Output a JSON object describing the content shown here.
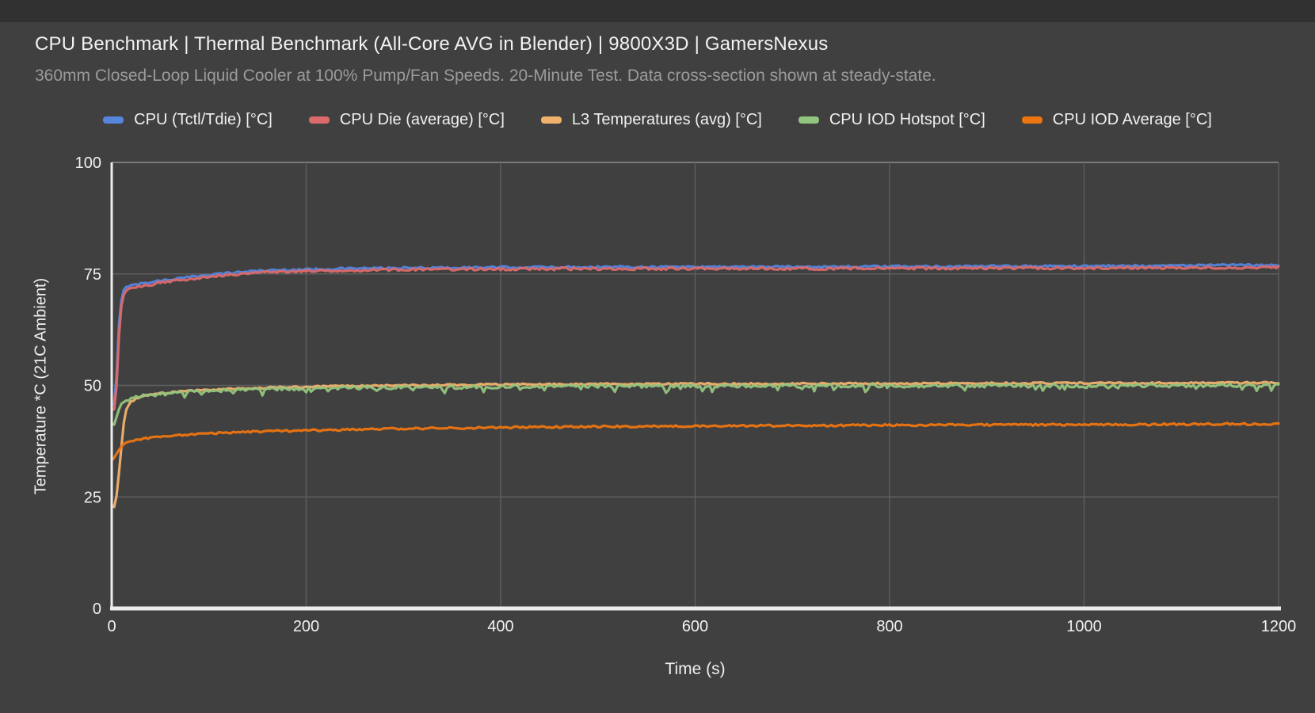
{
  "page": {
    "background": "#404040",
    "top_strip_color": "#313131"
  },
  "chart_data": {
    "type": "line",
    "title": "CPU Benchmark | Thermal Benchmark (All-Core AVG in Blender) | 9800X3D | GamersNexus",
    "subtitle": "360mm Closed-Loop Liquid Cooler at 100% Pump/Fan Speeds. 20-Minute Test. Data cross-section shown at steady-state.",
    "xlabel": "Time (s)",
    "ylabel": "Temperature *C (21C Ambient)",
    "xlim": [
      0,
      1200
    ],
    "ylim": [
      0,
      100
    ],
    "xticks": [
      0,
      200,
      400,
      600,
      800,
      1000,
      1200
    ],
    "yticks": [
      0,
      25,
      50,
      75,
      100
    ],
    "grid": true,
    "legend_position": "top",
    "colors": {
      "grid": "#5e5e5e",
      "grid_top": "#8d8d8d",
      "axis": "#ececec",
      "tick_text": "#f0f0f0"
    },
    "series": [
      {
        "name": "CPU (Tctl/Tdie) [°C]",
        "color": "#5585dd",
        "noise": 0.22,
        "points": [
          [
            0,
            45.5
          ],
          [
            3,
            45.8
          ],
          [
            5,
            52
          ],
          [
            8,
            66
          ],
          [
            11,
            71
          ],
          [
            15,
            72.2
          ],
          [
            22,
            72.5
          ],
          [
            35,
            73
          ],
          [
            50,
            73.5
          ],
          [
            70,
            74
          ],
          [
            95,
            74.7
          ],
          [
            120,
            75.2
          ],
          [
            150,
            75.7
          ],
          [
            180,
            75.9
          ],
          [
            220,
            76.1
          ],
          [
            260,
            76.25
          ],
          [
            300,
            76.3
          ],
          [
            360,
            76.4
          ],
          [
            420,
            76.5
          ],
          [
            500,
            76.55
          ],
          [
            600,
            76.6
          ],
          [
            700,
            76.6
          ],
          [
            800,
            76.65
          ],
          [
            900,
            76.7
          ],
          [
            1000,
            76.75
          ],
          [
            1080,
            76.85
          ],
          [
            1140,
            76.95
          ],
          [
            1200,
            77.0
          ]
        ]
      },
      {
        "name": "CPU Die (average) [°C]",
        "color": "#dc6a6a",
        "noise": 0.28,
        "points": [
          [
            0,
            44.3
          ],
          [
            3,
            44.6
          ],
          [
            5,
            50
          ],
          [
            8,
            63.5
          ],
          [
            11,
            69.8
          ],
          [
            15,
            71.3
          ],
          [
            22,
            71.8
          ],
          [
            35,
            72.4
          ],
          [
            50,
            73
          ],
          [
            70,
            73.6
          ],
          [
            95,
            74.3
          ],
          [
            120,
            74.8
          ],
          [
            150,
            75.3
          ],
          [
            180,
            75.55
          ],
          [
            220,
            75.75
          ],
          [
            260,
            75.85
          ],
          [
            300,
            75.95
          ],
          [
            360,
            76.05
          ],
          [
            420,
            76.1
          ],
          [
            500,
            76.15
          ],
          [
            600,
            76.2
          ],
          [
            700,
            76.2
          ],
          [
            800,
            76.25
          ],
          [
            900,
            76.25
          ],
          [
            1000,
            76.3
          ],
          [
            1100,
            76.4
          ],
          [
            1200,
            76.45
          ]
        ]
      },
      {
        "name": "L3 Temperatures (avg) [°C]",
        "color": "#f1b16d",
        "noise": 0.18,
        "points": [
          [
            0,
            23.2
          ],
          [
            2,
            22.4
          ],
          [
            4,
            23.5
          ],
          [
            6,
            27
          ],
          [
            9,
            34
          ],
          [
            12,
            41
          ],
          [
            15,
            44.5
          ],
          [
            19,
            46.2
          ],
          [
            25,
            47
          ],
          [
            35,
            47.7
          ],
          [
            50,
            48.2
          ],
          [
            70,
            48.6
          ],
          [
            95,
            48.95
          ],
          [
            120,
            49.2
          ],
          [
            150,
            49.45
          ],
          [
            200,
            49.7
          ],
          [
            250,
            49.9
          ],
          [
            300,
            50.0
          ],
          [
            400,
            50.2
          ],
          [
            500,
            50.3
          ],
          [
            600,
            50.35
          ],
          [
            700,
            50.4
          ],
          [
            800,
            50.45
          ],
          [
            900,
            50.5
          ],
          [
            1000,
            50.5
          ],
          [
            1100,
            50.55
          ],
          [
            1200,
            50.6
          ]
        ]
      },
      {
        "name": "CPU IOD Hotspot [°C]",
        "color": "#93c47d",
        "noise": 0.4,
        "spike_chance": 0.12,
        "spike_amp": 1.3,
        "points": [
          [
            0,
            41.4
          ],
          [
            2,
            40.9
          ],
          [
            4,
            41.8
          ],
          [
            6,
            43.5
          ],
          [
            9,
            45.3
          ],
          [
            12,
            46.2
          ],
          [
            16,
            46.8
          ],
          [
            22,
            47.2
          ],
          [
            32,
            47.6
          ],
          [
            45,
            48.0
          ],
          [
            60,
            48.3
          ],
          [
            80,
            48.6
          ],
          [
            100,
            48.85
          ],
          [
            130,
            49.05
          ],
          [
            160,
            49.2
          ],
          [
            200,
            49.35
          ],
          [
            250,
            49.5
          ],
          [
            300,
            49.6
          ],
          [
            400,
            49.7
          ],
          [
            500,
            49.8
          ],
          [
            600,
            49.85
          ],
          [
            700,
            49.9
          ],
          [
            800,
            49.9
          ],
          [
            900,
            49.95
          ],
          [
            1000,
            49.95
          ],
          [
            1100,
            50.0
          ],
          [
            1200,
            50.0
          ]
        ]
      },
      {
        "name": "CPU IOD Average [°C]",
        "color": "#ed7511",
        "noise": 0.22,
        "points": [
          [
            0,
            33.4
          ],
          [
            3,
            33.7
          ],
          [
            6,
            34.8
          ],
          [
            10,
            36.2
          ],
          [
            15,
            37.1
          ],
          [
            22,
            37.6
          ],
          [
            32,
            38.0
          ],
          [
            45,
            38.4
          ],
          [
            60,
            38.7
          ],
          [
            80,
            39.0
          ],
          [
            100,
            39.25
          ],
          [
            130,
            39.5
          ],
          [
            160,
            39.7
          ],
          [
            200,
            39.9
          ],
          [
            250,
            40.1
          ],
          [
            300,
            40.3
          ],
          [
            360,
            40.45
          ],
          [
            420,
            40.6
          ],
          [
            500,
            40.75
          ],
          [
            600,
            40.9
          ],
          [
            700,
            41.0
          ],
          [
            800,
            41.1
          ],
          [
            900,
            41.15
          ],
          [
            1000,
            41.2
          ],
          [
            1100,
            41.3
          ],
          [
            1200,
            41.4
          ]
        ]
      }
    ]
  }
}
